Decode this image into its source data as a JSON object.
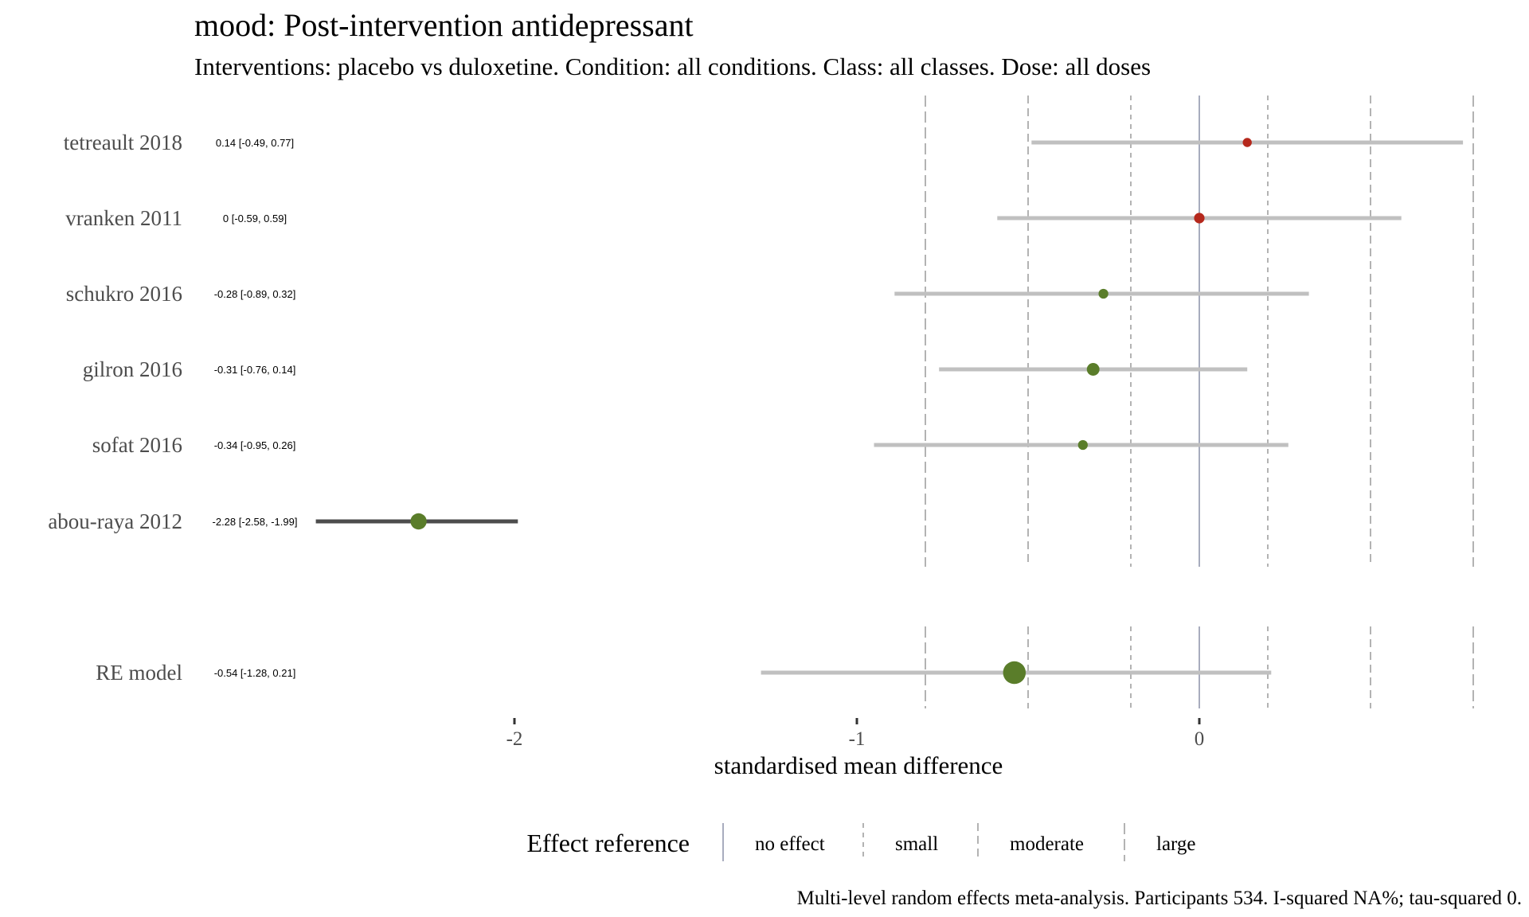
{
  "title": "mood: Post-intervention antidepressant",
  "subtitle": "Interventions: placebo vs duloxetine. Condition: all conditions. Class: all classes. Dose: all doses",
  "chart_data": {
    "type": "forest",
    "xlabel": "standardised mean difference",
    "xlim": [
      -2.6,
      0.8
    ],
    "x_ticks": [
      -2,
      -1,
      0
    ],
    "x_tick_labels": [
      "-2",
      "-1",
      "0"
    ],
    "reference_lines": {
      "no_effect": [
        0
      ],
      "small": [
        -0.2,
        0.2
      ],
      "moderate": [
        -0.5,
        0.5
      ],
      "large": [
        -0.8,
        0.8
      ]
    },
    "colors": {
      "favours_intervention": "#5a7d2a",
      "favours_placebo": "#b5281c",
      "ci_line": "#c0c0c0",
      "ci_line_outlier": "#4d4d4d",
      "no_effect_line": "#8a91a8",
      "reference_dash": "#9a9a9a"
    },
    "studies": [
      {
        "name": "tetreault 2018",
        "estimate": 0.14,
        "lower": -0.49,
        "upper": 0.77,
        "ci_text": "0.14 [-0.49, 0.77]",
        "weight": 0.6
      },
      {
        "name": "vranken 2011",
        "estimate": 0,
        "lower": -0.59,
        "upper": 0.59,
        "ci_text": "0 [-0.59, 0.59]",
        "weight": 0.8
      },
      {
        "name": "schukro 2016",
        "estimate": -0.28,
        "lower": -0.89,
        "upper": 0.32,
        "ci_text": "-0.28 [-0.89, 0.32]",
        "weight": 0.7
      },
      {
        "name": "gilron 2016",
        "estimate": -0.31,
        "lower": -0.76,
        "upper": 0.14,
        "ci_text": "-0.31 [-0.76, 0.14]",
        "weight": 1.1
      },
      {
        "name": "sofat 2016",
        "estimate": -0.34,
        "lower": -0.95,
        "upper": 0.26,
        "ci_text": "-0.34 [-0.95, 0.26]",
        "weight": 0.7
      },
      {
        "name": "abou-raya 2012",
        "estimate": -2.28,
        "lower": -2.58,
        "upper": -1.99,
        "ci_text": "-2.28 [-2.58, -1.99]",
        "weight": 1.6
      }
    ],
    "summary": {
      "name": "RE model",
      "estimate": -0.54,
      "lower": -1.28,
      "upper": 0.21,
      "ci_text": "-0.54 [-1.28, 0.21]",
      "weight": 2.5
    },
    "legend": {
      "title": "Effect reference",
      "items": [
        "no effect",
        "small",
        "moderate",
        "large"
      ],
      "placement": "bottom"
    },
    "caption": "Multi-level random effects meta-analysis. Participants 534. I-squared NA%; tau-squared 0."
  }
}
